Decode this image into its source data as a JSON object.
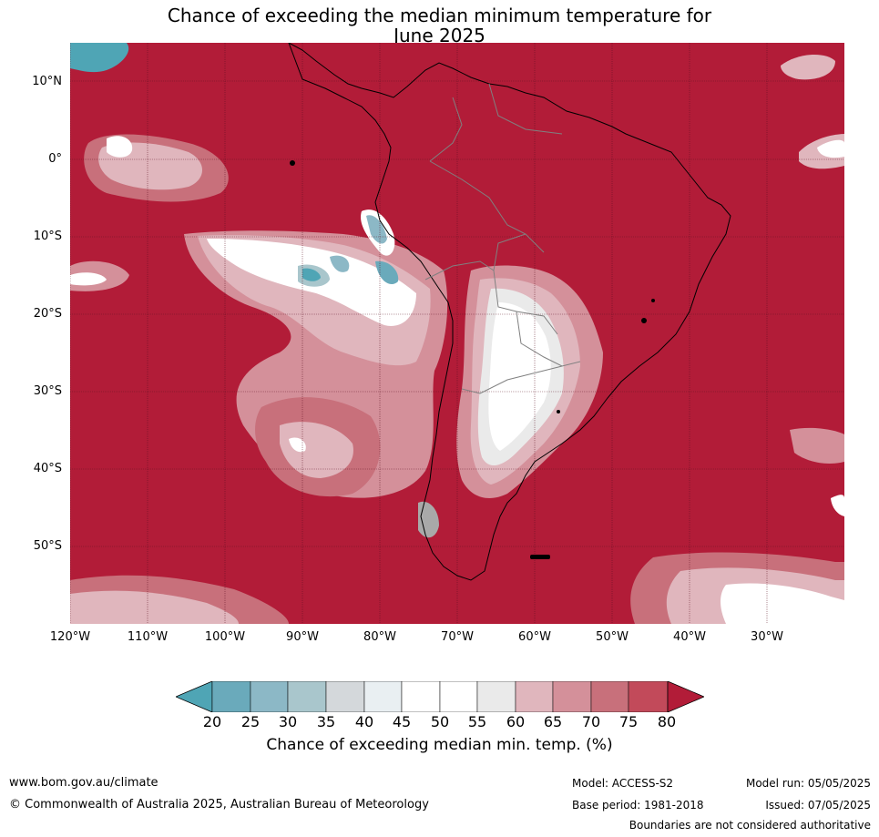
{
  "title": {
    "line1": "Chance of exceeding the median minimum temperature for",
    "line2": "June 2025"
  },
  "map": {
    "latitude_labels": [
      "10°N",
      "0°",
      "10°S",
      "20°S",
      "30°S",
      "40°S",
      "50°S"
    ],
    "longitude_labels": [
      "120°W",
      "110°W",
      "100°W",
      "90°W",
      "80°W",
      "70°W",
      "60°W",
      "50°W",
      "40°W",
      "30°W"
    ],
    "colors": {
      "above_80": "#b21c38",
      "land_outline": "#000000",
      "country_borders": "#808080"
    }
  },
  "colorbar": {
    "ticks": [
      "20",
      "25",
      "30",
      "35",
      "40",
      "45",
      "50",
      "55",
      "60",
      "65",
      "70",
      "75",
      "80"
    ],
    "label": "Chance of exceeding median min. temp. (%)",
    "colors": {
      "below_20": "#4fa5b5",
      "20_25": "#6aaabb",
      "25_30": "#8cb8c6",
      "30_35": "#a9c6cc",
      "35_40": "#d4d8db",
      "40_45": "#e9eff2",
      "45_50": "#ffffff",
      "50_55": "#ffffff",
      "55_60": "#eaeaea",
      "60_65": "#e0b6bd",
      "65_70": "#d4909a",
      "70_75": "#c8707b",
      "75_80": "#c24a5a",
      "above_80": "#b21c38"
    }
  },
  "footer": {
    "website": "www.bom.gov.au/climate",
    "copyright": "© Commonwealth of Australia 2025, Australian Bureau of Meteorology",
    "model": "Model: ACCESS-S2",
    "base_period": "Base period: 1981-2018",
    "model_run": "Model run: 05/05/2025",
    "issued": "Issued: 07/05/2025",
    "disclaimer": "Boundaries are not considered authoritative"
  }
}
